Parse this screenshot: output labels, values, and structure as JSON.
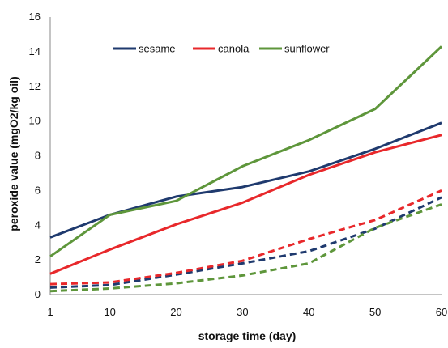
{
  "chart_data": {
    "type": "line",
    "xlabel": "storage time (day)",
    "ylabel": "peroxide value  (mgO2/kg oil)",
    "x": [
      1,
      10,
      20,
      30,
      40,
      50,
      60
    ],
    "xlim": [
      1,
      60
    ],
    "ylim": [
      0,
      16
    ],
    "yticks": [
      0,
      2,
      4,
      6,
      8,
      10,
      12,
      14,
      16
    ],
    "grid": false,
    "legend_position": "top-center",
    "legend": [
      "sesame",
      "canola",
      "sunflower"
    ],
    "series": [
      {
        "name": "sesame",
        "color": "#1f3a6e",
        "style": "solid",
        "values": [
          3.3,
          4.6,
          5.65,
          6.2,
          7.1,
          8.4,
          9.9
        ]
      },
      {
        "name": "canola",
        "color": "#e8282b",
        "style": "solid",
        "values": [
          1.2,
          2.6,
          4.05,
          5.3,
          6.9,
          8.2,
          9.2
        ]
      },
      {
        "name": "sunflower",
        "color": "#5e963b",
        "style": "solid",
        "values": [
          2.2,
          4.6,
          5.4,
          7.4,
          8.9,
          10.7,
          14.3
        ]
      },
      {
        "name": "",
        "color": "#1f3a6e",
        "style": "dashed",
        "values": [
          0.4,
          0.55,
          1.15,
          1.8,
          2.5,
          3.8,
          5.6
        ]
      },
      {
        "name": "",
        "color": "#e8282b",
        "style": "dashed",
        "values": [
          0.6,
          0.7,
          1.25,
          1.95,
          3.2,
          4.3,
          6.0
        ]
      },
      {
        "name": "",
        "color": "#5e963b",
        "style": "dashed",
        "values": [
          0.2,
          0.35,
          0.65,
          1.1,
          1.8,
          3.85,
          5.2
        ]
      }
    ]
  }
}
